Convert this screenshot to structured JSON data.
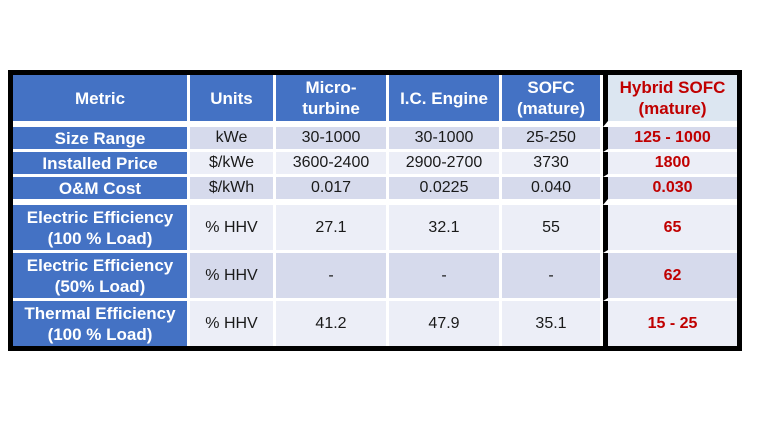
{
  "chart_data": {
    "type": "table",
    "title": "",
    "columns": [
      "Metric",
      "Units",
      "Micro-turbine",
      "I.C. Engine",
      "SOFC (mature)",
      "Hybrid SOFC (mature)"
    ],
    "rows": [
      [
        "Size Range",
        "kWe",
        "30-1000",
        "30-1000",
        "25-250",
        "125 - 1000"
      ],
      [
        "Installed Price",
        "$/kWe",
        "3600-2400",
        "2900-2700",
        "3730",
        "1800"
      ],
      [
        "O&M Cost",
        "$/kWh",
        "0.017",
        "0.0225",
        "0.040",
        "0.030"
      ],
      [
        "Electric Efficiency (100 % Load)",
        "% HHV",
        "27.1",
        "32.1",
        "55",
        "65"
      ],
      [
        "Electric Efficiency (50% Load)",
        "% HHV",
        "-",
        "-",
        "-",
        "62"
      ],
      [
        "Thermal Efficiency (100 % Load)",
        "% HHV",
        "41.2",
        "47.9",
        "35.1",
        "15 - 25"
      ]
    ],
    "highlight_column": "Hybrid SOFC (mature)"
  },
  "display": {
    "header_cells": [
      {
        "l1": "Metric",
        "l2": ""
      },
      {
        "l1": "Units",
        "l2": ""
      },
      {
        "l1": "Micro-",
        "l2": "turbine"
      },
      {
        "l1": "I.C. Engine",
        "l2": ""
      },
      {
        "l1": "SOFC",
        "l2": "(mature)"
      },
      {
        "l1": "Hybrid SOFC",
        "l2": "(mature)"
      }
    ],
    "metric_cells": [
      {
        "l1": "Size Range",
        "l2": ""
      },
      {
        "l1": "Installed Price",
        "l2": ""
      },
      {
        "l1": "O&M Cost",
        "l2": ""
      },
      {
        "l1": "Electric Efficiency",
        "l2": "(100 % Load)"
      },
      {
        "l1": "Electric Efficiency",
        "l2": "(50% Load)"
      },
      {
        "l1": "Thermal Efficiency",
        "l2": "(100 % Load)"
      }
    ]
  },
  "colors": {
    "header_blue": "#4472C4",
    "band_dark": "#D6DAEC",
    "band_light": "#ECEEF7",
    "hybrid_header_bg": "#DCE6F1",
    "highlight_red": "#C00000",
    "table_border": "#000000",
    "page_background": "#FFFFFF"
  }
}
